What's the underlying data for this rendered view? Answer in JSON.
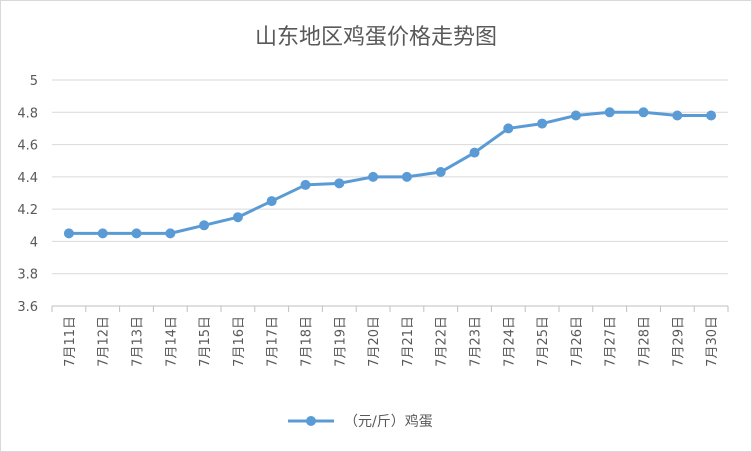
{
  "chart_data": {
    "type": "line",
    "title": "山东地区鸡蛋价格走势图",
    "categories": [
      "7月11日",
      "7月12日",
      "7月13日",
      "7月14日",
      "7月15日",
      "7月16日",
      "7月17日",
      "7月18日",
      "7月19日",
      "7月20日",
      "7月21日",
      "7月22日",
      "7月23日",
      "7月24日",
      "7月25日",
      "7月26日",
      "7月27日",
      "7月28日",
      "7月29日",
      "7月30日"
    ],
    "series": [
      {
        "name": "（元/斤）鸡蛋",
        "color": "#5b9bd5",
        "values": [
          4.05,
          4.05,
          4.05,
          4.05,
          4.1,
          4.15,
          4.25,
          4.35,
          4.36,
          4.4,
          4.4,
          4.43,
          4.55,
          4.7,
          4.73,
          4.78,
          4.8,
          4.8,
          4.78,
          4.78
        ]
      }
    ],
    "ylim": [
      3.6,
      5
    ],
    "yticks": [
      "3.6",
      "3.8",
      "4",
      "4.2",
      "4.4",
      "4.6",
      "4.8",
      "5"
    ],
    "xlabel": "",
    "ylabel": "",
    "grid": true,
    "legend": "bottom"
  }
}
